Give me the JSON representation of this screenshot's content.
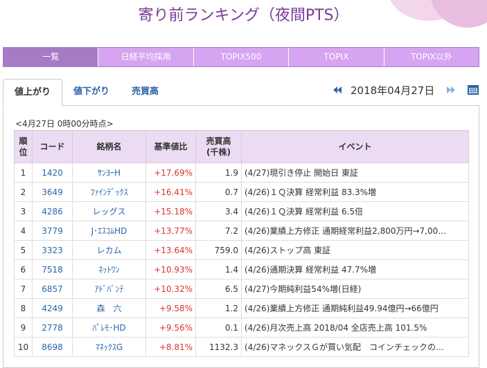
{
  "header": {
    "title": "寄り前ランキング（夜間PTS）"
  },
  "nav": [
    "一覧",
    "日経平均採用",
    "TOPIX500",
    "TOPIX",
    "TOPIX以外"
  ],
  "subtabs": [
    "値上がり",
    "値下がり",
    "売買高"
  ],
  "date": "2018年04月27日",
  "timestamp": "<4月27日 0時00分時点>",
  "table": {
    "columns": [
      "順\n位",
      "コード",
      "銘柄名",
      "基準値比",
      "売買高\n(千株)",
      "イベント"
    ],
    "rows": [
      [
        "1",
        "1420",
        "ｻﾝﾖｰH",
        "+17.69%",
        "1.9",
        "(4/27)現引き停止 開始日 東証"
      ],
      [
        "2",
        "3649",
        "ﾌｧｲﾝﾃﾞｯｸｽ",
        "+16.41%",
        "0.7",
        "(4/26)１Ｑ決算 経常利益 83.3%増"
      ],
      [
        "3",
        "4286",
        "レッグス",
        "+15.18%",
        "3.4",
        "(4/26)１Ｑ決算 経常利益 6.5倍"
      ],
      [
        "4",
        "3779",
        "J･ｴｽｺﾑHD",
        "+13.77%",
        "7.2",
        "(4/26)業績上方修正 通期経常利益2,800万円→7,00…"
      ],
      [
        "5",
        "3323",
        "レカム",
        "+13.64%",
        "759.0",
        "(4/26)ストップ高 東証"
      ],
      [
        "6",
        "7518",
        "ﾈｯﾄﾜﾝ",
        "+10.93%",
        "1.4",
        "(4/26)通期決算 経常利益 47.7%増"
      ],
      [
        "7",
        "6857",
        "ｱﾄﾞﾊﾞﾝﾃ",
        "+10.32%",
        "6.5",
        "(4/27)今期純利益54%増(日経)"
      ],
      [
        "8",
        "4249",
        "森　六",
        "+9.58%",
        "1.2",
        "(4/26)業績上方修正 通期純利益49.94億円→66億円"
      ],
      [
        "9",
        "2778",
        "ﾊﾟﾚﾓ･HD",
        "+9.56%",
        "0.1",
        "(4/26)月次売上高 2018/04 全店売上高 101.5%"
      ],
      [
        "10",
        "8698",
        "ﾏﾈｯｸｽG",
        "+8.81%",
        "1132.3",
        "(4/26)マネックスＧが買い気配　コインチェックの…"
      ]
    ]
  }
}
